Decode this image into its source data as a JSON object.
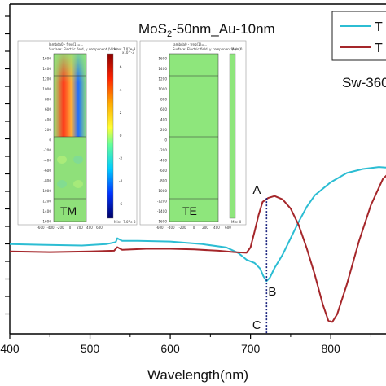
{
  "chart_data": {
    "type": "line",
    "title": "MoS2-50nm_Au-10nm",
    "title_main": "MoS",
    "title_sub": "2",
    "title_rest": "-50nm_Au-10nm",
    "xlabel": "Wavelength(nm)",
    "ylabel": "",
    "xlim": [
      400,
      880
    ],
    "ylim": [
      0,
      1
    ],
    "x_ticks": [
      400,
      500,
      600,
      700,
      800
    ],
    "grid": false,
    "legend": "top-right",
    "legend_labels": [
      "T",
      "T"
    ],
    "annotation_sw": "Sw-360",
    "series": [
      {
        "color": "#2cbdd3",
        "points": [
          [
            400,
            0.272
          ],
          [
            440,
            0.27
          ],
          [
            490,
            0.268
          ],
          [
            520,
            0.272
          ],
          [
            532,
            0.278
          ],
          [
            534,
            0.29
          ],
          [
            540,
            0.282
          ],
          [
            560,
            0.282
          ],
          [
            600,
            0.28
          ],
          [
            640,
            0.272
          ],
          [
            670,
            0.262
          ],
          [
            685,
            0.245
          ],
          [
            695,
            0.225
          ],
          [
            705,
            0.215
          ],
          [
            712,
            0.198
          ],
          [
            716,
            0.175
          ],
          [
            720,
            0.16
          ],
          [
            724,
            0.17
          ],
          [
            730,
            0.2
          ],
          [
            740,
            0.24
          ],
          [
            750,
            0.29
          ],
          [
            760,
            0.34
          ],
          [
            770,
            0.385
          ],
          [
            780,
            0.42
          ],
          [
            800,
            0.46
          ],
          [
            820,
            0.488
          ],
          [
            840,
            0.5
          ],
          [
            860,
            0.506
          ],
          [
            880,
            0.502
          ]
        ]
      },
      {
        "color": "#a5262a",
        "points": [
          [
            400,
            0.25
          ],
          [
            450,
            0.248
          ],
          [
            500,
            0.25
          ],
          [
            530,
            0.252
          ],
          [
            534,
            0.263
          ],
          [
            540,
            0.255
          ],
          [
            570,
            0.258
          ],
          [
            600,
            0.258
          ],
          [
            630,
            0.256
          ],
          [
            660,
            0.252
          ],
          [
            680,
            0.248
          ],
          [
            695,
            0.246
          ],
          [
            700,
            0.262
          ],
          [
            705,
            0.31
          ],
          [
            710,
            0.36
          ],
          [
            715,
            0.4
          ],
          [
            722,
            0.412
          ],
          [
            730,
            0.418
          ],
          [
            740,
            0.408
          ],
          [
            750,
            0.38
          ],
          [
            760,
            0.33
          ],
          [
            770,
            0.26
          ],
          [
            780,
            0.18
          ],
          [
            790,
            0.09
          ],
          [
            797,
            0.04
          ],
          [
            802,
            0.036
          ],
          [
            808,
            0.06
          ],
          [
            820,
            0.15
          ],
          [
            835,
            0.28
          ],
          [
            850,
            0.39
          ],
          [
            865,
            0.47
          ],
          [
            880,
            0.505
          ]
        ]
      }
    ],
    "markers": [
      {
        "label": "A",
        "x": 720
      },
      {
        "label": "B",
        "x": 720
      },
      {
        "label": "C",
        "x": 720
      }
    ],
    "inset": {
      "panels": [
        {
          "label": "TM",
          "line1": "lambda0 - freq(1)=...",
          "line2": "Surface: Electric field, y component (V/m)",
          "colorbar_max": "Max: 7.07e-3",
          "colorbar_min": "Min: -7.07e-3",
          "colorbar_exp": "x10^-3",
          "colorbar_ticks": [
            "6",
            "4",
            "2",
            "0",
            "-2",
            "-4",
            "-6"
          ]
        },
        {
          "label": "TE",
          "line1": "lambda0 - freq(1)=...",
          "line2": "Surface: Electric field, y component (V/m)",
          "colorbar_max": "Max: 0",
          "colorbar_min": "Min: 0"
        }
      ],
      "y_ticks": [
        "1600",
        "1400",
        "1200",
        "1000",
        "800",
        "600",
        "400",
        "200",
        "0",
        "-200",
        "-400",
        "-600",
        "-800",
        "-1000",
        "-1200",
        "-1400",
        "-1600"
      ],
      "x_ticks": [
        "-600",
        "-400",
        "-200",
        "0",
        "200",
        "400",
        "600"
      ]
    }
  }
}
